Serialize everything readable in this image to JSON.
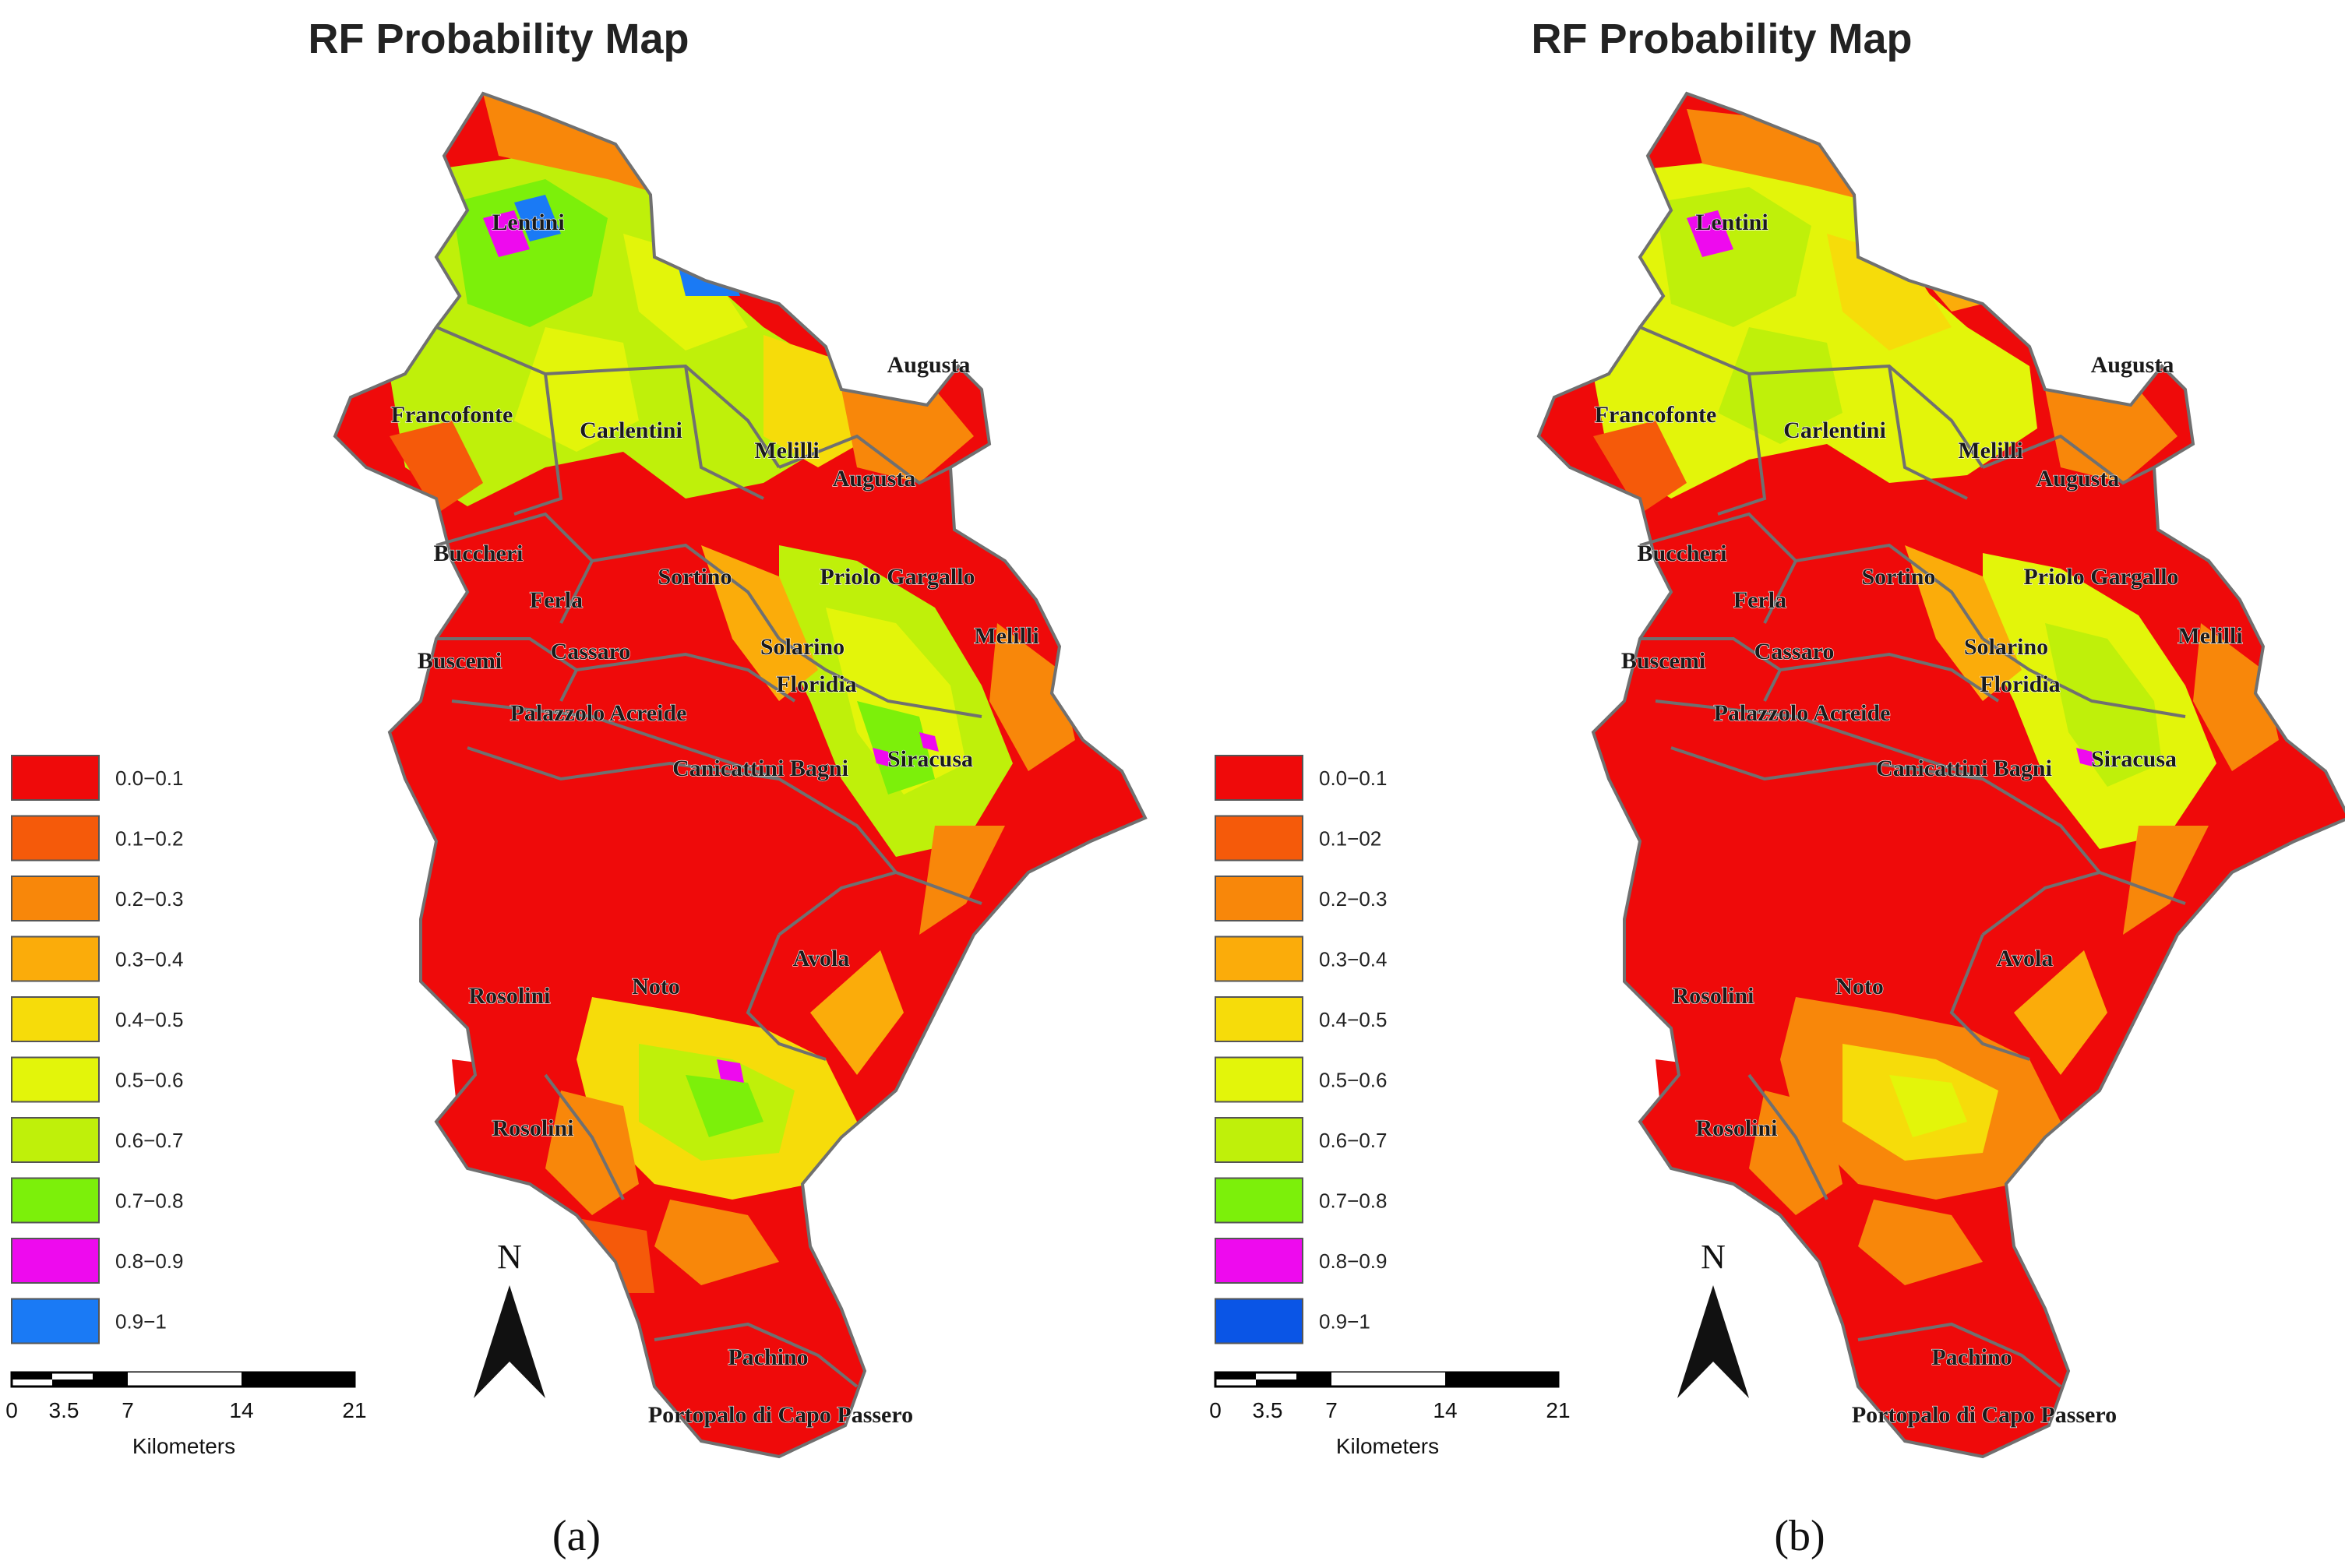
{
  "panels": [
    {
      "id": "a",
      "title": "RF Probability Map",
      "caption": "(a)",
      "legend": [
        {
          "label": "0.0−0.1",
          "color": "#ef0a0a"
        },
        {
          "label": "0.1−0.2",
          "color": "#f55a0a"
        },
        {
          "label": "0.2−0.3",
          "color": "#f8870a"
        },
        {
          "label": "0.3−0.4",
          "color": "#fbac0a"
        },
        {
          "label": "0.4−0.5",
          "color": "#f6dc0a"
        },
        {
          "label": "0.5−0.6",
          "color": "#e3f50a"
        },
        {
          "label": "0.6−0.7",
          "color": "#bff00a"
        },
        {
          "label": "0.7−0.8",
          "color": "#7cf00a"
        },
        {
          "label": "0.8−0.9",
          "color": "#ee0aee"
        },
        {
          "label": "0.9−1",
          "color": "#1a7af5"
        }
      ]
    },
    {
      "id": "b",
      "title": "RF Probability Map",
      "caption": "(b)",
      "legend": [
        {
          "label": "0.0−0.1",
          "color": "#ef0a0a"
        },
        {
          "label": "0.1−02",
          "color": "#f55a0a"
        },
        {
          "label": "0.2−0.3",
          "color": "#f8870a"
        },
        {
          "label": "0.3−0.4",
          "color": "#fbac0a"
        },
        {
          "label": "0.4−0.5",
          "color": "#f6dc0a"
        },
        {
          "label": "0.5−0.6",
          "color": "#e3f50a"
        },
        {
          "label": "0.6−0.7",
          "color": "#bff00a"
        },
        {
          "label": "0.7−0.8",
          "color": "#7cf00a"
        },
        {
          "label": "0.8−0.9",
          "color": "#ee0aee"
        },
        {
          "label": "0.9−1",
          "color": "#0a55e6"
        }
      ]
    }
  ],
  "places": {
    "lentini": "Lentini",
    "augusta_north": "Augusta",
    "francofonte": "Francofonte",
    "carlentini": "Carlentini",
    "melilli_north": "Melilli",
    "augusta_south": "Augusta",
    "buccheri": "Buccheri",
    "sortino": "Sortino",
    "priolo_gargallo": "Priolo Gargallo",
    "ferla": "Ferla",
    "melilli_east": "Melilli",
    "buscemi": "Buscemi",
    "cassaro": "Cassaro",
    "solarino": "Solarino",
    "floridia": "Floridia",
    "palazzolo_acreide": "Palazzolo Acreide",
    "siracusa": "Siracusa",
    "canicattini_bagni": "Canicattini Bagni",
    "rosolini_north": "Rosolini",
    "noto": "Noto",
    "avola": "Avola",
    "rosolini_south": "Rosolini",
    "pachino": "Pachino",
    "portopalo": "Portopalo di Capo Passero"
  },
  "scalebar": {
    "ticks": [
      "0",
      "3.5",
      "7",
      "14",
      "21"
    ],
    "unit": "Kilometers"
  },
  "north_arrow": "N"
}
